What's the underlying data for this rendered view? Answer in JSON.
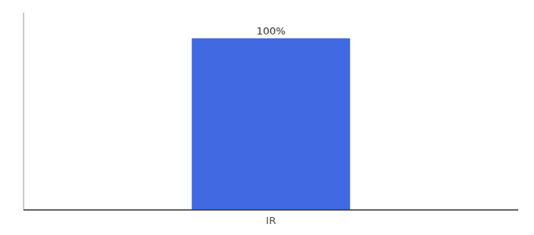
{
  "chart_data": {
    "type": "bar",
    "categories": [
      "IR"
    ],
    "values": [
      100
    ],
    "value_labels": [
      "100%"
    ],
    "data_labels": true,
    "color": "#4169e1",
    "ylim": [
      0,
      115
    ],
    "tick_labels": "x"
  }
}
